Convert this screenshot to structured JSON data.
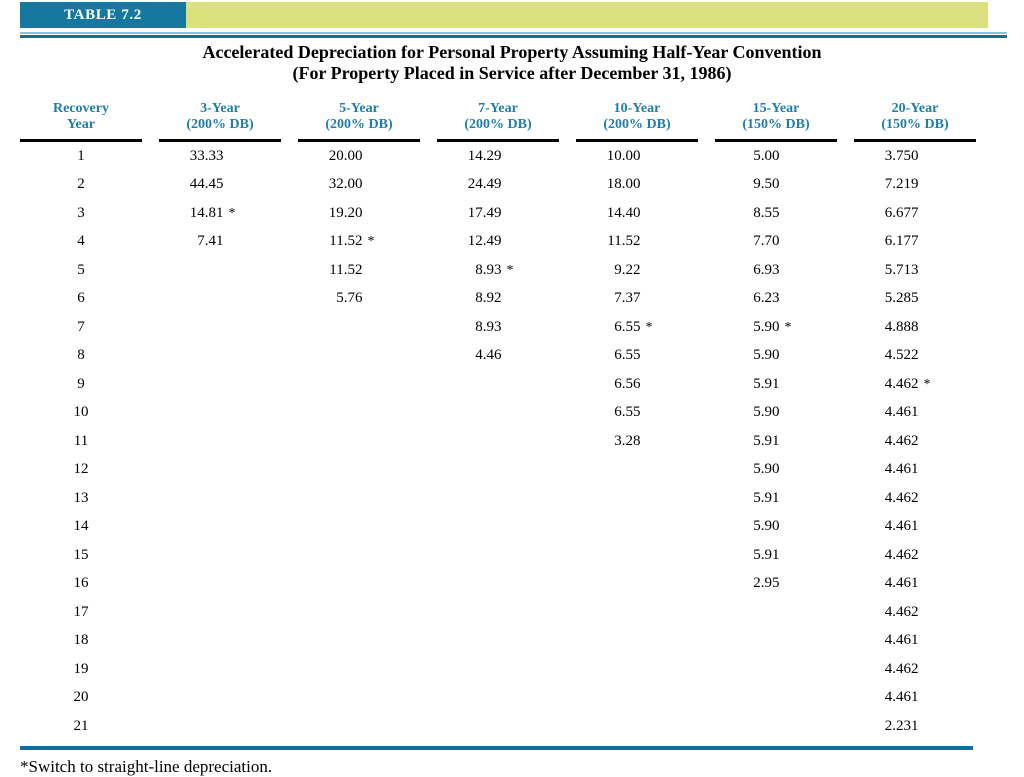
{
  "badge": "TABLE 7.2",
  "title": {
    "line1": "Accelerated Depreciation for Personal Property Assuming Half-Year Convention",
    "line2": "(For Property Placed in Service after December 31, 1986)"
  },
  "columns": [
    {
      "line1": "Recovery",
      "line2": "Year"
    },
    {
      "line1": "3-Year",
      "line2": "(200% DB)"
    },
    {
      "line1": "5-Year",
      "line2": "(200% DB)"
    },
    {
      "line1": "7-Year",
      "line2": "(200% DB)"
    },
    {
      "line1": "10-Year",
      "line2": "(200% DB)"
    },
    {
      "line1": "15-Year",
      "line2": "(150% DB)"
    },
    {
      "line1": "20-Year",
      "line2": "(150% DB)"
    }
  ],
  "rows": [
    {
      "year": "1",
      "cells": [
        {
          "v": "33.33"
        },
        {
          "v": "20.00"
        },
        {
          "v": "14.29"
        },
        {
          "v": "10.00"
        },
        {
          "v": "5.00"
        },
        {
          "v": "3.750"
        }
      ]
    },
    {
      "year": "2",
      "cells": [
        {
          "v": "44.45"
        },
        {
          "v": "32.00"
        },
        {
          "v": "24.49"
        },
        {
          "v": "18.00"
        },
        {
          "v": "9.50"
        },
        {
          "v": "7.219"
        }
      ]
    },
    {
      "year": "3",
      "cells": [
        {
          "v": "14.81",
          "star": true
        },
        {
          "v": "19.20"
        },
        {
          "v": "17.49"
        },
        {
          "v": "14.40"
        },
        {
          "v": "8.55"
        },
        {
          "v": "6.677"
        }
      ]
    },
    {
      "year": "4",
      "cells": [
        {
          "v": "7.41"
        },
        {
          "v": "11.52",
          "star": true
        },
        {
          "v": "12.49"
        },
        {
          "v": "11.52"
        },
        {
          "v": "7.70"
        },
        {
          "v": "6.177"
        }
      ]
    },
    {
      "year": "5",
      "cells": [
        null,
        {
          "v": "11.52"
        },
        {
          "v": "8.93",
          "star": true
        },
        {
          "v": "9.22"
        },
        {
          "v": "6.93"
        },
        {
          "v": "5.713"
        }
      ]
    },
    {
      "year": "6",
      "cells": [
        null,
        {
          "v": "5.76"
        },
        {
          "v": "8.92"
        },
        {
          "v": "7.37"
        },
        {
          "v": "6.23"
        },
        {
          "v": "5.285"
        }
      ]
    },
    {
      "year": "7",
      "cells": [
        null,
        null,
        {
          "v": "8.93"
        },
        {
          "v": "6.55",
          "star": true
        },
        {
          "v": "5.90",
          "star": true
        },
        {
          "v": "4.888"
        }
      ]
    },
    {
      "year": "8",
      "cells": [
        null,
        null,
        {
          "v": "4.46"
        },
        {
          "v": "6.55"
        },
        {
          "v": "5.90"
        },
        {
          "v": "4.522"
        }
      ]
    },
    {
      "year": "9",
      "cells": [
        null,
        null,
        null,
        {
          "v": "6.56"
        },
        {
          "v": "5.91"
        },
        {
          "v": "4.462",
          "star": true
        }
      ]
    },
    {
      "year": "10",
      "cells": [
        null,
        null,
        null,
        {
          "v": "6.55"
        },
        {
          "v": "5.90"
        },
        {
          "v": "4.461"
        }
      ]
    },
    {
      "year": "11",
      "cells": [
        null,
        null,
        null,
        {
          "v": "3.28"
        },
        {
          "v": "5.91"
        },
        {
          "v": "4.462"
        }
      ]
    },
    {
      "year": "12",
      "cells": [
        null,
        null,
        null,
        null,
        {
          "v": "5.90"
        },
        {
          "v": "4.461"
        }
      ]
    },
    {
      "year": "13",
      "cells": [
        null,
        null,
        null,
        null,
        {
          "v": "5.91"
        },
        {
          "v": "4.462"
        }
      ]
    },
    {
      "year": "14",
      "cells": [
        null,
        null,
        null,
        null,
        {
          "v": "5.90"
        },
        {
          "v": "4.461"
        }
      ]
    },
    {
      "year": "15",
      "cells": [
        null,
        null,
        null,
        null,
        {
          "v": "5.91"
        },
        {
          "v": "4.462"
        }
      ]
    },
    {
      "year": "16",
      "cells": [
        null,
        null,
        null,
        null,
        {
          "v": "2.95"
        },
        {
          "v": "4.461"
        }
      ]
    },
    {
      "year": "17",
      "cells": [
        null,
        null,
        null,
        null,
        null,
        {
          "v": "4.462"
        }
      ]
    },
    {
      "year": "18",
      "cells": [
        null,
        null,
        null,
        null,
        null,
        {
          "v": "4.461"
        }
      ]
    },
    {
      "year": "19",
      "cells": [
        null,
        null,
        null,
        null,
        null,
        {
          "v": "4.462"
        }
      ]
    },
    {
      "year": "20",
      "cells": [
        null,
        null,
        null,
        null,
        null,
        {
          "v": "4.461"
        }
      ]
    },
    {
      "year": "21",
      "cells": [
        null,
        null,
        null,
        null,
        null,
        {
          "v": "2.231"
        }
      ]
    }
  ],
  "footnote": "*Switch to straight-line depreciation.",
  "colors": {
    "teal_badge": "#16779f",
    "olive_bar": "#dce17f",
    "header_text": "#1e7dab",
    "rule_teal": "#0e6f99",
    "rule_light_blue": "#8cc0d8"
  }
}
